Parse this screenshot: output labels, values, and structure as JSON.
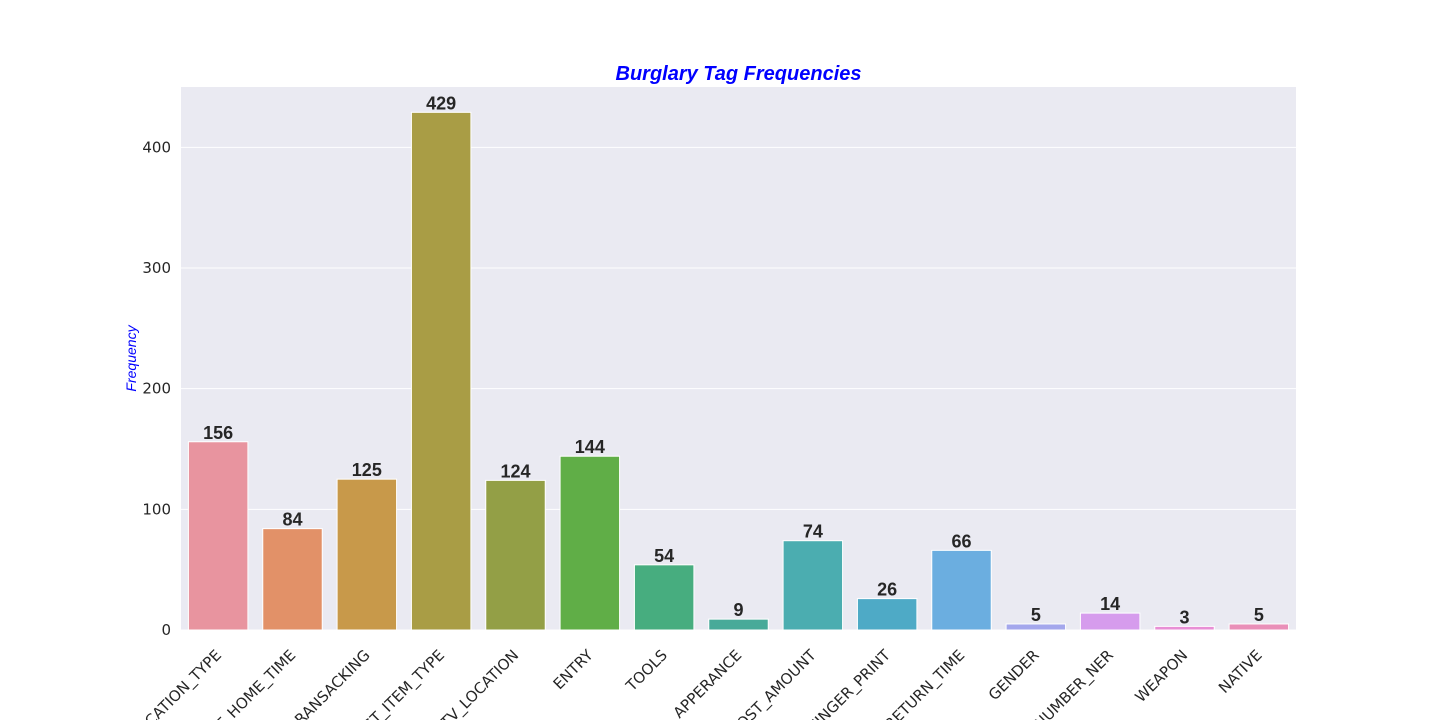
{
  "chart_data": {
    "type": "bar",
    "title": "Burglary Tag Frequencies",
    "xlabel": "",
    "ylabel": "Frequency",
    "ylim": [
      0,
      450
    ],
    "yticks": [
      0,
      100,
      200,
      300,
      400
    ],
    "grid": true,
    "categories": [
      "LOCATION_TYPE",
      "NOT_HOME_TIME",
      "RANSACKING",
      "LOST_ITEM_TYPE",
      "TV_LOCATION",
      "ENTRY",
      "TOOLS",
      "APPERANCE",
      "LOST_AMOUNT",
      "FINGER_PRINT",
      "RETURN_TIME",
      "GENDER",
      "NUMBER_NER",
      "WEAPON",
      "NATIVE"
    ],
    "values": [
      156,
      84,
      125,
      429,
      124,
      144,
      54,
      9,
      74,
      26,
      66,
      5,
      14,
      3,
      5
    ],
    "colors": [
      "#e8949f",
      "#e29168",
      "#c8994a",
      "#a99d45",
      "#939f46",
      "#60ae47",
      "#47ad7f",
      "#48aa99",
      "#4badb0",
      "#4eaac6",
      "#6baee0",
      "#a4a7ec",
      "#d69ced",
      "#e88fd5",
      "#e98fb8"
    ],
    "title_color": "#0000ff",
    "ylabel_color": "#0000ff",
    "background_color": "#eaeaf2"
  }
}
